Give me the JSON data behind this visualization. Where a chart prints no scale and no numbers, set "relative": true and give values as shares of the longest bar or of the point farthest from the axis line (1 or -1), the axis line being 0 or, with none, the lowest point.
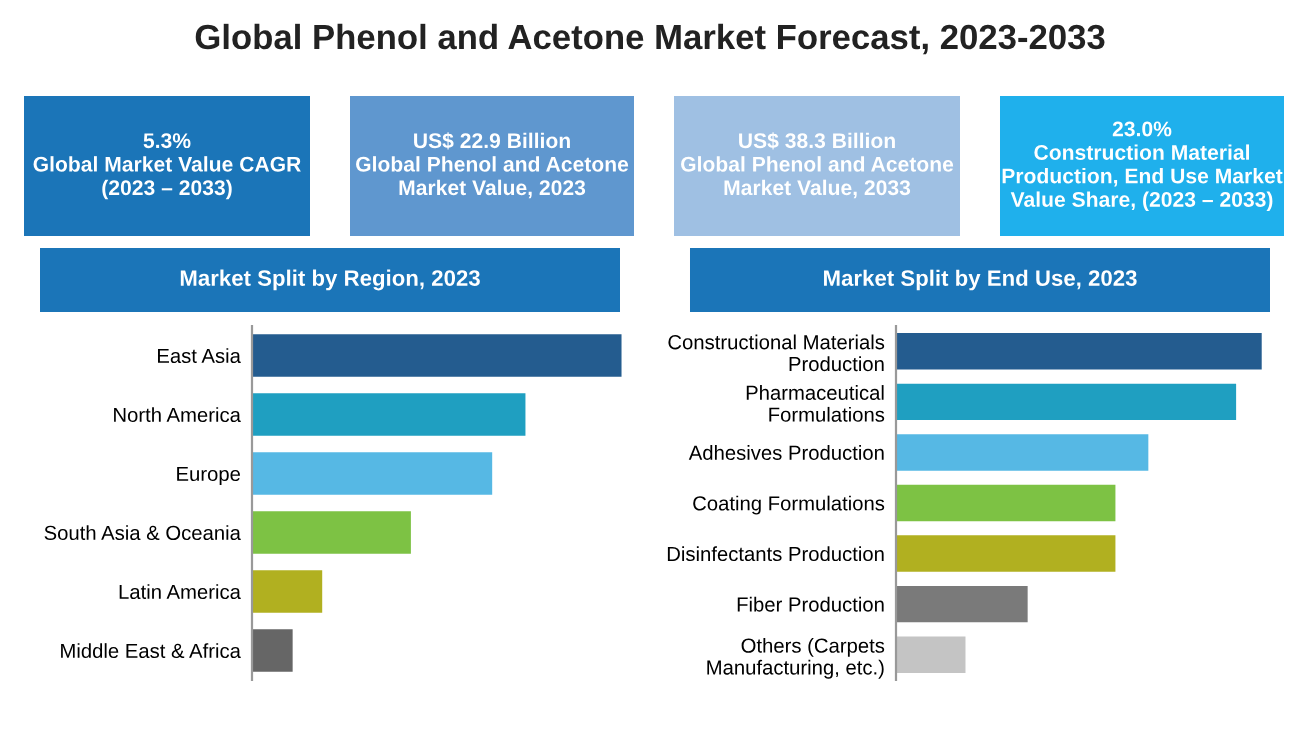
{
  "chart_data": [
    {
      "type": "other",
      "title": "Global Phenol and Acetone Market Forecast, 2023-2033",
      "annotations": [
        "5.3%\nGlobal Market Value CAGR\n(2023 – 2033)",
        "US$ 22.9 Billion\nGlobal Phenol and Acetone\nMarket Value, 2023",
        "US$ 38.3 Billion\nGlobal Phenol and Acetone\nMarket Value, 2033",
        "23.0%\nConstruction Material\nProduction, End Use Market\nValue Share, (2023 – 2033)"
      ],
      "colors": [
        "#1b75b8",
        "#5f97cf",
        "#9fc0e3",
        "#1fb0ec"
      ]
    },
    {
      "type": "bar",
      "orientation": "horizontal",
      "relative": true,
      "title": "Market Split by Region, 2023",
      "categories": [
        "East Asia",
        "North America",
        "Europe",
        "South Asia & Oceania",
        "Latin America",
        "Middle East & Africa"
      ],
      "values": [
        1,
        0.74,
        0.65,
        0.43,
        0.19,
        0.11
      ],
      "colors": [
        "#245c8f",
        "#1f9fc1",
        "#56b8e4",
        "#7dc244",
        "#b1b020",
        "#666666"
      ]
    },
    {
      "type": "bar",
      "orientation": "horizontal",
      "relative": true,
      "title": "Market Split by End Use, 2023",
      "categories": [
        "Constructional Materials\nProduction",
        "Pharmaceutical\nFormulations",
        "Adhesives Production",
        "Coating Formulations",
        "Disinfectants Production",
        "Fiber Production",
        "Others (Carpets\nManufacturing, etc.)"
      ],
      "values": [
        1,
        0.93,
        0.69,
        0.6,
        0.6,
        0.36,
        0.19
      ],
      "colors": [
        "#245c8f",
        "#1f9fc1",
        "#56b8e4",
        "#7dc244",
        "#b1b020",
        "#7a7a7a",
        "#c4c4c4"
      ]
    }
  ]
}
